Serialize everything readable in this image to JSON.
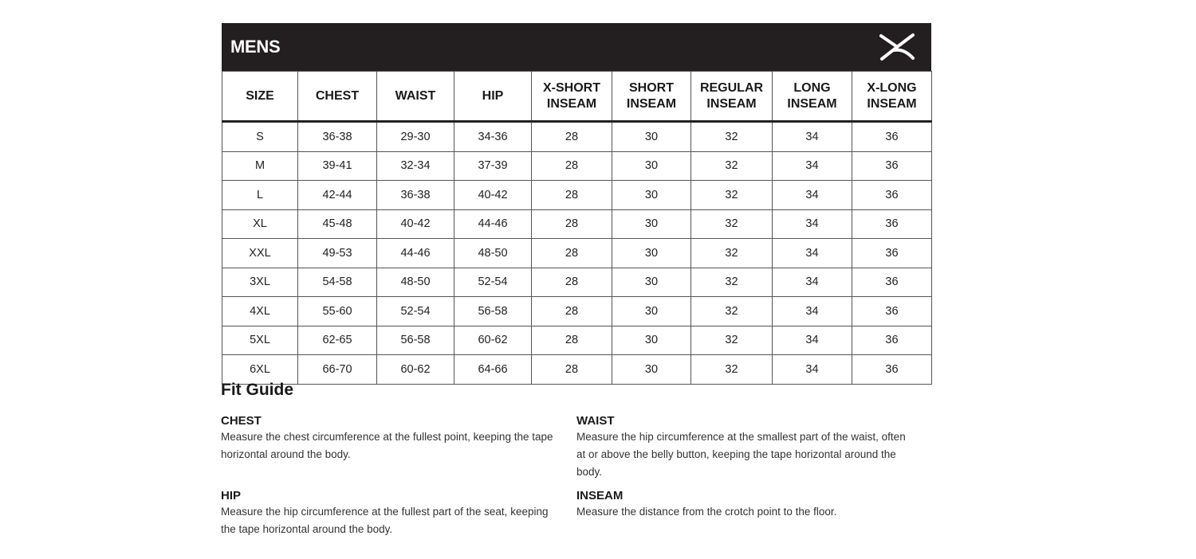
{
  "chart": {
    "title": "MENS",
    "logo_icon": "brand-x-logo-icon",
    "colors": {
      "header_bg": "#231f20"
    },
    "columns": [
      "SIZE",
      "CHEST",
      "WAIST",
      "HIP",
      "X-SHORT\nINSEAM",
      "SHORT\nINSEAM",
      "REGULAR\nINSEAM",
      "LONG\nINSEAM",
      "X-LONG\nINSEAM"
    ],
    "rows": [
      [
        "S",
        "36-38",
        "29-30",
        "34-36",
        "28",
        "30",
        "32",
        "34",
        "36"
      ],
      [
        "M",
        "39-41",
        "32-34",
        "37-39",
        "28",
        "30",
        "32",
        "34",
        "36"
      ],
      [
        "L",
        "42-44",
        "36-38",
        "40-42",
        "28",
        "30",
        "32",
        "34",
        "36"
      ],
      [
        "XL",
        "45-48",
        "40-42",
        "44-46",
        "28",
        "30",
        "32",
        "34",
        "36"
      ],
      [
        "XXL",
        "49-53",
        "44-46",
        "48-50",
        "28",
        "30",
        "32",
        "34",
        "36"
      ],
      [
        "3XL",
        "54-58",
        "48-50",
        "52-54",
        "28",
        "30",
        "32",
        "34",
        "36"
      ],
      [
        "4XL",
        "55-60",
        "52-54",
        "56-58",
        "28",
        "30",
        "32",
        "34",
        "36"
      ],
      [
        "5XL",
        "62-65",
        "56-58",
        "60-62",
        "28",
        "30",
        "32",
        "34",
        "36"
      ],
      [
        "6XL",
        "66-70",
        "60-62",
        "64-66",
        "28",
        "30",
        "32",
        "34",
        "36"
      ]
    ]
  },
  "fit_guide": {
    "title": "Fit Guide",
    "items": [
      {
        "heading": "CHEST",
        "text": "Measure the chest circumference at the fullest point, keeping the tape horizontal around the body."
      },
      {
        "heading": "WAIST",
        "text": "Measure the hip circumference at the smallest part of the waist, often at or above the belly button, keeping the tape horizontal around the body."
      },
      {
        "heading": "HIP",
        "text": "Measure the hip circumference at the fullest part of the seat, keeping the tape horizontal around the body."
      },
      {
        "heading": "INSEAM",
        "text": "Measure the distance from the crotch point to the floor."
      }
    ]
  }
}
